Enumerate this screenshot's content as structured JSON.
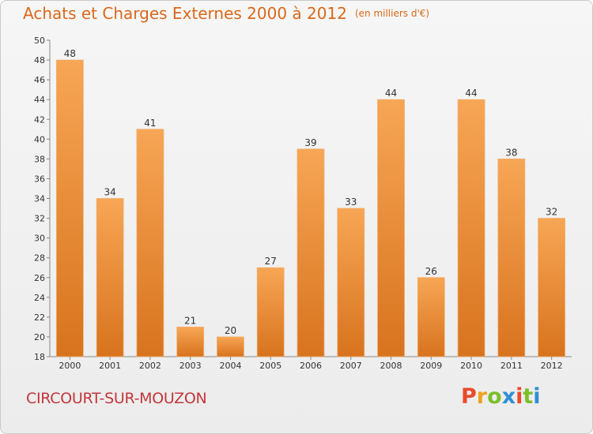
{
  "page": {
    "title": "Achats et Charges Externes 2000 à 2012",
    "unit": "(en milliers d'€)",
    "commune": "CIRCOURT-SUR-MOUZON",
    "logo_letters": [
      "P",
      "r",
      "o",
      "x",
      "i",
      "t",
      "i"
    ]
  },
  "colors": {
    "title": "#d9681b",
    "commune": "#c2373c",
    "bar_top": "#f7a655",
    "bar_bottom": "#d8731e",
    "logo": [
      "#e94b2b",
      "#f0a21b",
      "#7bbf2a",
      "#2f8fd6",
      "#e94b2b",
      "#7bbf2a",
      "#2f8fd6"
    ]
  },
  "chart_data": {
    "type": "bar",
    "title": "Achats et Charges Externes 2000 à 2012",
    "ylabel": "(en milliers d'€)",
    "categories": [
      "2000",
      "2001",
      "2002",
      "2003",
      "2004",
      "2005",
      "2006",
      "2007",
      "2008",
      "2009",
      "2010",
      "2011",
      "2012"
    ],
    "values": [
      48,
      34,
      41,
      21,
      20,
      27,
      39,
      33,
      44,
      26,
      44,
      38,
      32
    ],
    "ylim": [
      18,
      50
    ],
    "ytick_step": 2,
    "grid": false,
    "legend": "none"
  }
}
